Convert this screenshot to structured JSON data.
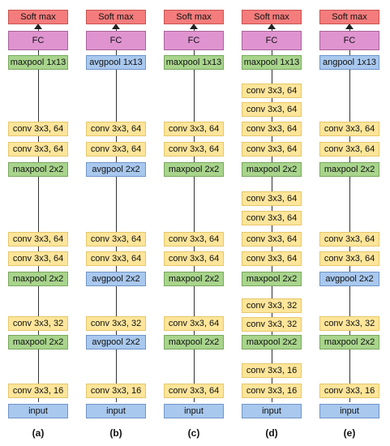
{
  "columns": [
    {
      "caption": "(a)",
      "softmax": "Soft max",
      "fc": "FC",
      "blocks": [
        {
          "label": "maxpool 1x13",
          "kind": "maxpool"
        },
        {
          "label": "conv 3x3, 64",
          "kind": "conv"
        },
        {
          "label": "conv 3x3, 64",
          "kind": "conv"
        },
        {
          "label": "maxpool 2x2",
          "kind": "maxpool"
        },
        {
          "label": "conv 3x3, 64",
          "kind": "conv"
        },
        {
          "label": "conv 3x3, 64",
          "kind": "conv"
        },
        {
          "label": "maxpool 2x2",
          "kind": "maxpool"
        },
        {
          "label": "conv 3x3, 32",
          "kind": "conv"
        },
        {
          "label": "maxpool 2x2",
          "kind": "maxpool"
        },
        {
          "label": "conv 3x3, 16",
          "kind": "conv"
        },
        {
          "label": "input",
          "kind": "input"
        }
      ]
    },
    {
      "caption": "(b)",
      "softmax": "Soft max",
      "fc": "FC",
      "blocks": [
        {
          "label": "avgpool 1x13",
          "kind": "avgpool"
        },
        {
          "label": "conv 3x3, 64",
          "kind": "conv"
        },
        {
          "label": "conv 3x3, 64",
          "kind": "conv"
        },
        {
          "label": "avgpool 2x2",
          "kind": "avgpool"
        },
        {
          "label": "conv 3x3, 64",
          "kind": "conv"
        },
        {
          "label": "conv 3x3, 64",
          "kind": "conv"
        },
        {
          "label": "avgpool 2x2",
          "kind": "avgpool"
        },
        {
          "label": "conv 3x3, 32",
          "kind": "conv"
        },
        {
          "label": "avgpool 2x2",
          "kind": "avgpool"
        },
        {
          "label": "conv 3x3, 16",
          "kind": "conv"
        },
        {
          "label": "input",
          "kind": "input"
        }
      ]
    },
    {
      "caption": "(c)",
      "softmax": "Soft max",
      "fc": "FC",
      "blocks": [
        {
          "label": "maxpool 1x13",
          "kind": "maxpool"
        },
        {
          "label": "conv 3x3, 64",
          "kind": "conv"
        },
        {
          "label": "conv 3x3, 64",
          "kind": "conv"
        },
        {
          "label": "maxpool 2x2",
          "kind": "maxpool"
        },
        {
          "label": "conv 3x3, 64",
          "kind": "conv"
        },
        {
          "label": "conv 3x3, 64",
          "kind": "conv"
        },
        {
          "label": "maxpool 2x2",
          "kind": "maxpool"
        },
        {
          "label": "conv 3x3, 64",
          "kind": "conv"
        },
        {
          "label": "maxpool 2x2",
          "kind": "maxpool"
        },
        {
          "label": "conv 3x3, 64",
          "kind": "conv"
        },
        {
          "label": "input",
          "kind": "input"
        }
      ]
    },
    {
      "caption": "(d)",
      "softmax": "Soft max",
      "fc": "FC",
      "blocks": [
        {
          "label": "maxpool 1x13",
          "kind": "maxpool"
        },
        {
          "label": "conv 3x3, 64",
          "kind": "conv"
        },
        {
          "label": "conv 3x3, 64",
          "kind": "conv"
        },
        {
          "label": "conv 3x3, 64",
          "kind": "conv"
        },
        {
          "label": "conv 3x3, 64",
          "kind": "conv"
        },
        {
          "label": "maxpool 2x2",
          "kind": "maxpool"
        },
        {
          "label": "conv 3x3, 64",
          "kind": "conv"
        },
        {
          "label": "conv 3x3, 64",
          "kind": "conv"
        },
        {
          "label": "conv 3x3, 64",
          "kind": "conv"
        },
        {
          "label": "conv 3x3, 64",
          "kind": "conv"
        },
        {
          "label": "maxpool 2x2",
          "kind": "maxpool"
        },
        {
          "label": "conv 3x3, 32",
          "kind": "conv"
        },
        {
          "label": "conv 3x3, 32",
          "kind": "conv"
        },
        {
          "label": "maxpool 2x2",
          "kind": "maxpool"
        },
        {
          "label": "conv 3x3, 16",
          "kind": "conv"
        },
        {
          "label": "conv 3x3, 16",
          "kind": "conv"
        },
        {
          "label": "input",
          "kind": "input"
        }
      ]
    },
    {
      "caption": "(e)",
      "softmax": "Soft max",
      "fc": "FC",
      "blocks": [
        {
          "label": "angpool 1x13",
          "kind": "avgpool"
        },
        {
          "label": "conv 3x3, 64",
          "kind": "conv"
        },
        {
          "label": "conv 3x3, 64",
          "kind": "conv"
        },
        {
          "label": "maxpool 2x2",
          "kind": "maxpool"
        },
        {
          "label": "conv 3x3, 64",
          "kind": "conv"
        },
        {
          "label": "conv 3x3, 64",
          "kind": "conv"
        },
        {
          "label": "avgpool 2x2",
          "kind": "avgpool"
        },
        {
          "label": "conv 3x3, 32",
          "kind": "conv"
        },
        {
          "label": "maxpool 2x2",
          "kind": "maxpool"
        },
        {
          "label": "conv 3x3, 16",
          "kind": "conv"
        },
        {
          "label": "input",
          "kind": "input"
        }
      ]
    }
  ]
}
